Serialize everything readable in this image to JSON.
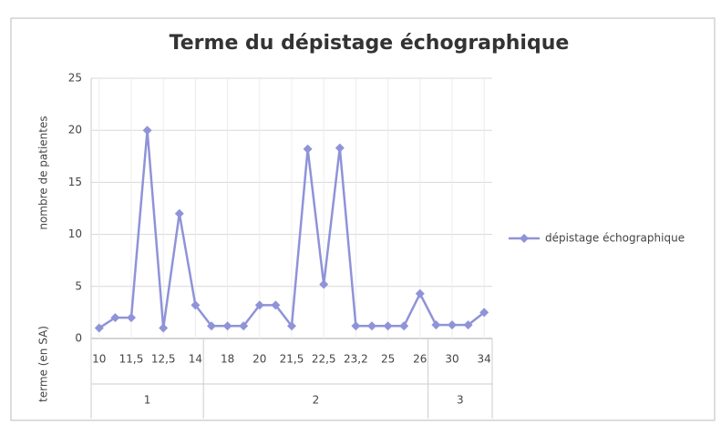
{
  "chart_data": {
    "type": "line",
    "title": "Terme du dépistage échographique",
    "y_label": "nombre de patientes",
    "x_label": "terme  (en SA)",
    "categories": [
      "10",
      null,
      "11,5",
      null,
      "12,5",
      null,
      "14",
      null,
      "18",
      null,
      "20",
      null,
      "21,5",
      null,
      "22,5",
      null,
      "23,2",
      null,
      "25",
      null,
      "26",
      null,
      "30",
      null,
      "34"
    ],
    "groups": [
      {
        "name": "1",
        "count": 7
      },
      {
        "name": "2",
        "count": 14
      },
      {
        "name": "3",
        "count": 4
      }
    ],
    "series": [
      {
        "name": "dépistage échographique",
        "color": "#8f93d8",
        "values": [
          1,
          2,
          2,
          20,
          1,
          12,
          3.2,
          1.2,
          1.2,
          1.2,
          3.2,
          3.2,
          1.2,
          18.2,
          5.2,
          18.3,
          1.2,
          1.2,
          1.2,
          1.2,
          4.3,
          1.3,
          1.3,
          1.3,
          2.5
        ]
      }
    ],
    "ylim": [
      0,
      25
    ],
    "yticks": [
      0,
      5,
      10,
      15,
      20,
      25
    ],
    "grid": true,
    "legend": "right"
  }
}
